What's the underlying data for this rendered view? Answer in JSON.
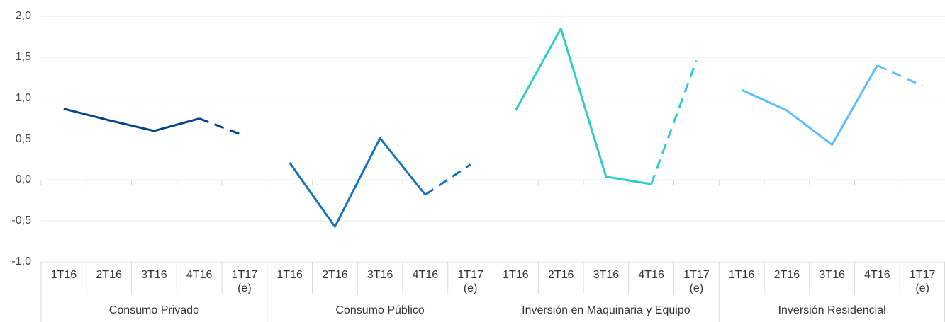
{
  "chart_data": {
    "type": "line",
    "ylim": [
      -1,
      2
    ],
    "yticks": [
      {
        "value": -1,
        "label": "-1,0"
      },
      {
        "value": -0.5,
        "label": "-0,5"
      },
      {
        "value": 0,
        "label": "0,0"
      },
      {
        "value": 0.5,
        "label": "0,5"
      },
      {
        "value": 1,
        "label": "1,0"
      },
      {
        "value": 1.5,
        "label": "1,5"
      },
      {
        "value": 2,
        "label": "2,0"
      }
    ],
    "grid": true,
    "last_segment_dashed": true,
    "series": [
      {
        "name": "Consumo Privado",
        "color": "#004481",
        "categories": [
          "1T16",
          "2T16",
          "3T16",
          "4T16",
          "1T17\n(e)"
        ],
        "values": [
          0.87,
          0.73,
          0.6,
          0.75,
          0.54
        ]
      },
      {
        "name": "Consumo Público",
        "color": "#1973b8",
        "categories": [
          "1T16",
          "2T16",
          "3T16",
          "4T16",
          "1T17\n(e)"
        ],
        "values": [
          0.21,
          -0.57,
          0.51,
          -0.18,
          0.19
        ]
      },
      {
        "name": "Inversión en Maquinaria y Equipo",
        "color": "#2dcccd",
        "categories": [
          "1T16",
          "2T16",
          "3T16",
          "4T16",
          "1T17\n(e)"
        ],
        "values": [
          0.85,
          1.85,
          0.04,
          -0.05,
          1.46
        ]
      },
      {
        "name": "Inversión Residencial",
        "color": "#5bbeff",
        "categories": [
          "1T16",
          "2T16",
          "3T16",
          "4T16",
          "1T17\n(e)"
        ],
        "values": [
          1.1,
          0.85,
          0.43,
          1.4,
          1.15
        ]
      }
    ]
  }
}
